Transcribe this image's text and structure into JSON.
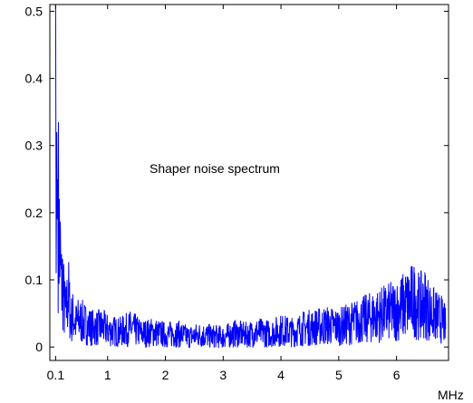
{
  "chart_data": {
    "type": "line",
    "title": "",
    "annotation": "Shaper noise spectrum",
    "xlabel": "",
    "x_unit_label": "MHz",
    "ylabel": "",
    "xlim": [
      0,
      6.9
    ],
    "ylim": [
      -0.02,
      0.51
    ],
    "x_ticks": [
      0.1,
      1,
      2,
      3,
      4,
      5,
      6
    ],
    "x_tick_labels": [
      "0.1",
      "1",
      "2",
      "3",
      "4",
      "5",
      "6"
    ],
    "y_ticks": [
      0,
      0.1,
      0.2,
      0.3,
      0.4,
      0.5
    ],
    "y_tick_labels": [
      "0",
      "0.1",
      "0.2",
      "0.3",
      "0.4",
      "0.5"
    ],
    "grid": false,
    "series_color": "#0000ff",
    "series": [
      {
        "x": [
          0.1,
          0.11,
          0.12,
          0.13,
          0.14,
          0.15,
          0.16,
          0.18,
          0.2,
          0.22,
          0.25,
          0.28,
          0.32,
          0.36,
          0.4,
          0.45,
          0.5,
          0.6,
          0.7,
          0.8,
          0.9,
          1.0,
          1.2,
          1.4,
          1.6,
          1.8,
          2.0,
          2.2,
          2.4,
          2.6,
          2.8,
          3.0,
          3.2,
          3.4,
          3.6,
          3.8,
          4.0,
          4.2,
          4.4,
          4.6,
          4.8,
          5.0,
          5.2,
          5.4,
          5.6,
          5.8,
          6.0,
          6.1,
          6.2,
          6.3,
          6.4,
          6.5,
          6.6,
          6.7,
          6.8,
          6.85
        ],
        "values": [
          0.51,
          0.11,
          0.32,
          0.19,
          0.25,
          0.2,
          0.17,
          0.13,
          0.09,
          0.1,
          0.06,
          0.05,
          0.08,
          0.04,
          0.045,
          0.035,
          0.04,
          0.035,
          0.03,
          0.028,
          0.03,
          0.025,
          0.022,
          0.028,
          0.02,
          0.022,
          0.018,
          0.02,
          0.015,
          0.018,
          0.016,
          0.015,
          0.02,
          0.018,
          0.022,
          0.02,
          0.025,
          0.022,
          0.028,
          0.03,
          0.032,
          0.03,
          0.035,
          0.04,
          0.045,
          0.05,
          0.055,
          0.06,
          0.065,
          0.07,
          0.06,
          0.065,
          0.05,
          0.045,
          0.04,
          0.03
        ]
      }
    ]
  }
}
